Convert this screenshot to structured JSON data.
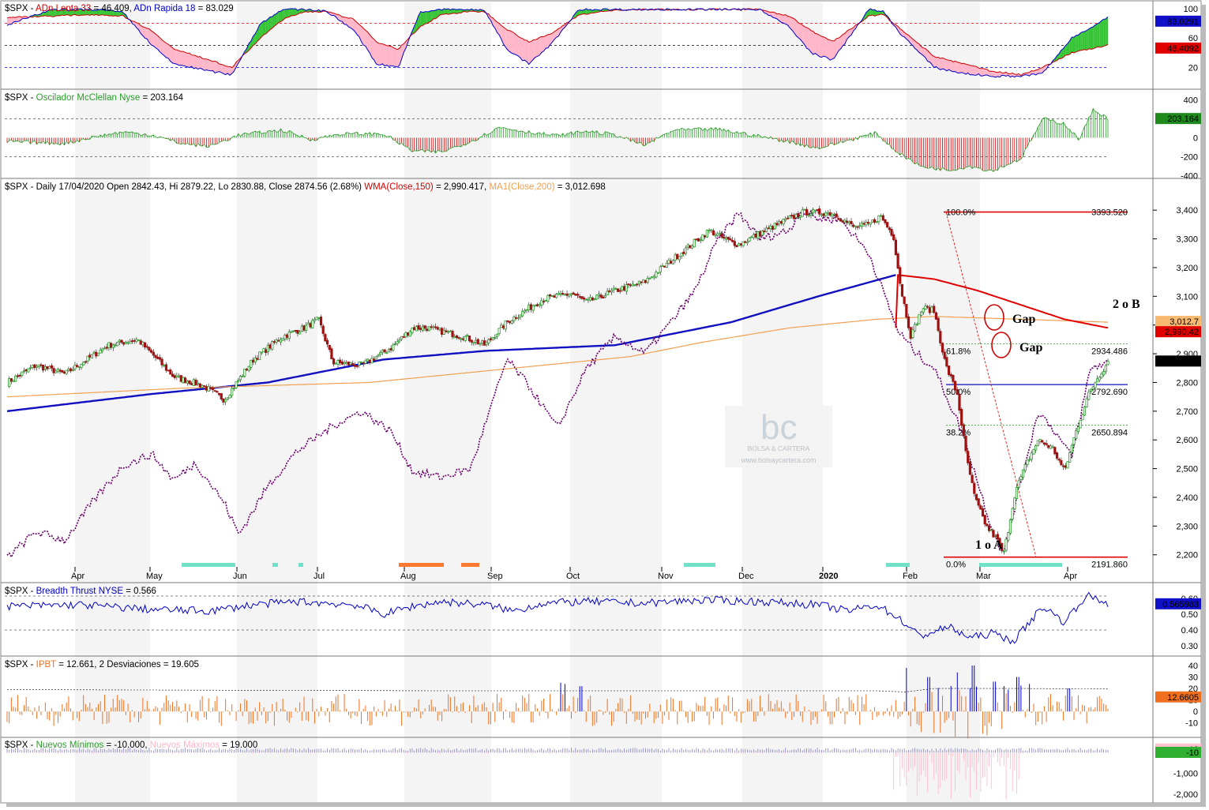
{
  "colors": {
    "green": "#2a9d2a",
    "red": "#d00000",
    "blue": "#0000c8",
    "purple": "#6a006a",
    "orange": "#f0a050",
    "pink": "#ffb6c8",
    "fill_green": "#35c535",
    "wma": "#e00000",
    "ma200": "#f0a050",
    "ipbt": "#f07020"
  },
  "months": [
    "Apr",
    "May",
    "Jun",
    "Jul",
    "Aug",
    "Sep",
    "Oct",
    "Nov",
    "Dec",
    "2020",
    "Feb",
    "Mar",
    "Apr"
  ],
  "panels": {
    "adn": {
      "sym": "$SPX - ",
      "l1": "ADn Lenta 33",
      "v1": " = 46.409, ",
      "l2": "ADn Rapida 18",
      "v2": " = 83.029",
      "ticks": [
        "100",
        "60",
        "20"
      ],
      "tag_a": "83.0291",
      "tag_b": "46.4092"
    },
    "mcc": {
      "sym": "$SPX - ",
      "l1": "Oscilador McClellan Nyse",
      "v1": " = 203.164",
      "ticks": [
        "400",
        "200",
        "0",
        "-200",
        "-400"
      ],
      "tag": "203.164"
    },
    "price": {
      "sym": "$SPX - Daily 17/04/2020 Open 2842.43, Hi 2879.22, Lo 2830.88, Close 2874.56 (2.68%) ",
      "l1": "WMA(Close,150)",
      "v1": " = 2,990.417, ",
      "l2": "MA1(Close,200)",
      "v2": " = 3,012.698",
      "ticks": [
        "3,400",
        "3,300",
        "3,200",
        "3,100",
        "3,000",
        "2,900",
        "2,800",
        "2,700",
        "2,600",
        "2,500",
        "2,400",
        "2,300",
        "2,200"
      ],
      "tag_ma": "3,012.7",
      "tag_wma": "2,990.42",
      "tag_close": "2,874.56",
      "fib": [
        {
          "pct": "100.0%",
          "val": "3393.520"
        },
        {
          "pct": "61.8%",
          "val": "2934.486"
        },
        {
          "pct": "50.0%",
          "val": "2792.690"
        },
        {
          "pct": "38.2%",
          "val": "2650.894"
        },
        {
          "pct": "0.0%",
          "val": "2191.860"
        }
      ],
      "gap1": "Gap",
      "gap2": "Gap",
      "wave1": "1 o A",
      "wave2": "2 o B",
      "logo_letters": "bc",
      "logo_name": "BOLSA & CARTERA",
      "logo_url": "www.bolsaycartera.com"
    },
    "bt": {
      "sym": "$SPX - ",
      "l1": "Breadth Thrust NYSE",
      "v1": " = 0.566",
      "ticks": [
        "0.60",
        "0.50",
        "0.40",
        "0.30"
      ],
      "tag": "0.565983"
    },
    "ipbt": {
      "sym": "$SPX - ",
      "l1": "IPBT",
      "v1": " = 12.661,      2 Desviaciones = 19.605",
      "ticks": [
        "40",
        "30",
        "20",
        "10",
        "0",
        "-10"
      ],
      "tag": "12.6605"
    },
    "nm": {
      "sym": "$SPX - ",
      "l1": "Nuevos Mínimos",
      "v1": " = -10.000, ",
      "l2": "Nuevos Máximos",
      "v2": " = 19.000",
      "ticks": [
        "0",
        "-1,000",
        "-2,000"
      ],
      "tag_a": "19",
      "tag_b": "-10"
    }
  },
  "chart_data": {
    "type": "line",
    "title": "$SPX - Daily 17/04/2020 Open 2842.43, Hi 2879.22, Lo 2830.88, Close 2874.56 (2.68%)",
    "x_range": [
      "2019-03",
      "2020-04-17"
    ],
    "ylim": [
      2180,
      3450
    ],
    "series": [
      {
        "name": "$SPX",
        "kind": "candlestick",
        "x": [
          "2019-03",
          "2019-04",
          "2019-05",
          "2019-06",
          "2019-07",
          "2019-08",
          "2019-09",
          "2019-10",
          "2019-11",
          "2019-12",
          "2020-01",
          "2020-02-19",
          "2020-03-23",
          "2020-04-17"
        ],
        "values": [
          2810,
          2900,
          2940,
          2740,
          3010,
          2840,
          2990,
          2900,
          3120,
          3230,
          3300,
          3393,
          2191,
          2874
        ]
      },
      {
        "name": "WMA(Close,150)",
        "values_last": 2990.417
      },
      {
        "name": "MA1(Close,200)",
        "values_last": 3012.698
      }
    ],
    "fibonacci": {
      "high": 3393.52,
      "low": 2191.86,
      "levels": [
        3393.52,
        2934.486,
        2792.69,
        2650.894,
        2191.86
      ]
    }
  }
}
